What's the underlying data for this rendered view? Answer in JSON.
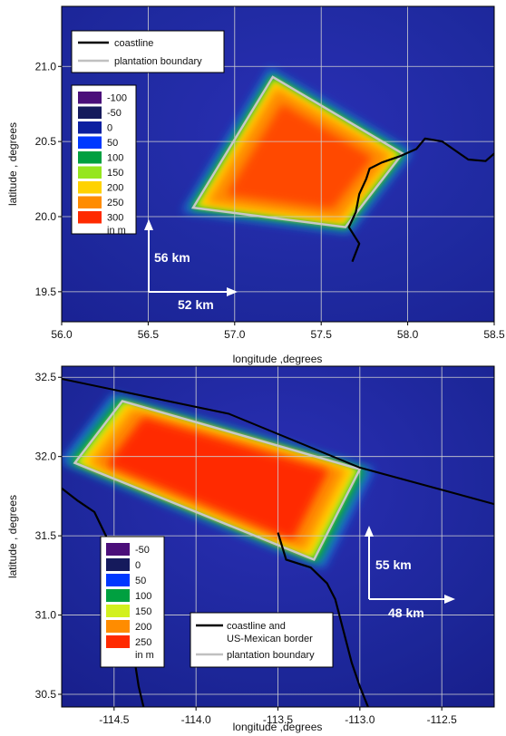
{
  "chart_data": [
    {
      "type": "heatmap",
      "xlabel": "longitude ,degrees",
      "ylabel": "latitude , degrees",
      "xlim": [
        56.0,
        58.5
      ],
      "ylim": [
        19.3,
        21.4
      ],
      "xticks": [
        "56.0",
        "56.5",
        "57.0",
        "57.5",
        "58.0",
        "58.5"
      ],
      "xtick_values": [
        56.0,
        56.5,
        57.0,
        57.5,
        58.0,
        58.5
      ],
      "yticks": [
        "19.5",
        "20.0",
        "20.5",
        "21.0"
      ],
      "ytick_values": [
        19.5,
        20.0,
        20.5,
        21.0
      ],
      "grid": true,
      "line_legend": {
        "placement": "top-left",
        "items": [
          {
            "label": "coastline",
            "color": "#000000"
          },
          {
            "label": "plantation boundary",
            "color": "#c0c0c0"
          }
        ]
      },
      "color_legend": {
        "placement": "left",
        "unit": "in m",
        "levels": [
          {
            "label": "-100",
            "color": "#4b0f7a"
          },
          {
            "label": "-50",
            "color": "#151a5c"
          },
          {
            "label": "0",
            "color": "#0b1fa0"
          },
          {
            "label": "50",
            "color": "#0038ff"
          },
          {
            "label": "100",
            "color": "#00a040"
          },
          {
            "label": "150",
            "color": "#96e61e"
          },
          {
            "label": "200",
            "color": "#ffd200"
          },
          {
            "label": "250",
            "color": "#ff8c00"
          },
          {
            "label": "300",
            "color": "#ff2a00"
          }
        ]
      },
      "plantation_boundary": [
        [
          57.22,
          20.93
        ],
        [
          57.97,
          20.42
        ],
        [
          57.64,
          19.93
        ],
        [
          56.76,
          20.06
        ]
      ],
      "coastline": [
        [
          57.68,
          19.7
        ],
        [
          57.72,
          19.82
        ],
        [
          57.66,
          19.93
        ],
        [
          57.7,
          20.03
        ],
        [
          57.72,
          20.15
        ],
        [
          57.76,
          20.25
        ],
        [
          57.78,
          20.32
        ],
        [
          57.85,
          20.36
        ],
        [
          57.95,
          20.4
        ],
        [
          58.05,
          20.45
        ],
        [
          58.1,
          20.52
        ],
        [
          58.2,
          20.5
        ],
        [
          58.3,
          20.42
        ],
        [
          58.35,
          20.38
        ],
        [
          58.45,
          20.37
        ],
        [
          58.5,
          20.42
        ]
      ],
      "arrows": [
        {
          "label": "56 km",
          "direction": "up"
        },
        {
          "label": "52 km",
          "direction": "right"
        }
      ]
    },
    {
      "type": "heatmap",
      "xlabel": "longitude ,degrees",
      "ylabel": "latitude , degrees",
      "xlim": [
        -114.82,
        -112.18
      ],
      "ylim": [
        30.42,
        32.57
      ],
      "xticks": [
        "-114.5",
        "-114.0",
        "-113.5",
        "-113.0",
        "-112.5"
      ],
      "xtick_values": [
        -114.5,
        -114.0,
        -113.5,
        -113.0,
        -112.5
      ],
      "yticks": [
        "30.5",
        "31.0",
        "31.5",
        "32.0",
        "32.5"
      ],
      "ytick_values": [
        30.5,
        31.0,
        31.5,
        32.0,
        32.5
      ],
      "grid": true,
      "line_legend": {
        "placement": "bottom-center",
        "items": [
          {
            "label": "coastline and",
            "label2": "US-Mexican border",
            "color": "#000000"
          },
          {
            "label": "plantation boundary",
            "color": "#c0c0c0"
          }
        ]
      },
      "color_legend": {
        "placement": "bottom-left",
        "unit": "in m",
        "levels": [
          {
            "label": "-50",
            "color": "#4b0f7a"
          },
          {
            "label": "0",
            "color": "#151a5c"
          },
          {
            "label": "50",
            "color": "#0038ff"
          },
          {
            "label": "100",
            "color": "#00a040"
          },
          {
            "label": "150",
            "color": "#d2f01e"
          },
          {
            "label": "200",
            "color": "#ff8c00"
          },
          {
            "label": "250",
            "color": "#ff2a00"
          }
        ]
      },
      "plantation_boundary": [
        [
          -114.74,
          31.96
        ],
        [
          -114.45,
          32.35
        ],
        [
          -113.0,
          31.92
        ],
        [
          -113.28,
          31.35
        ]
      ],
      "border_line": [
        [
          -114.82,
          32.49
        ],
        [
          -113.8,
          32.27
        ],
        [
          -113.0,
          31.93
        ],
        [
          -112.18,
          31.7
        ]
      ],
      "coastline": [
        [
          -113.5,
          31.52
        ],
        [
          -113.45,
          31.35
        ],
        [
          -113.3,
          31.3
        ],
        [
          -113.2,
          31.2
        ],
        [
          -113.15,
          31.1
        ],
        [
          -113.1,
          30.9
        ],
        [
          -113.05,
          30.7
        ],
        [
          -113.0,
          30.55
        ],
        [
          -112.95,
          30.42
        ]
      ],
      "coastline_west": [
        [
          -114.82,
          31.8
        ],
        [
          -114.72,
          31.72
        ],
        [
          -114.62,
          31.65
        ],
        [
          -114.55,
          31.5
        ],
        [
          -114.5,
          31.35
        ],
        [
          -114.45,
          31.15
        ],
        [
          -114.42,
          30.95
        ],
        [
          -114.38,
          30.75
        ],
        [
          -114.35,
          30.55
        ],
        [
          -114.32,
          30.42
        ]
      ],
      "arrows": [
        {
          "label": "55 km",
          "direction": "up"
        },
        {
          "label": "48 km",
          "direction": "right"
        }
      ]
    }
  ]
}
